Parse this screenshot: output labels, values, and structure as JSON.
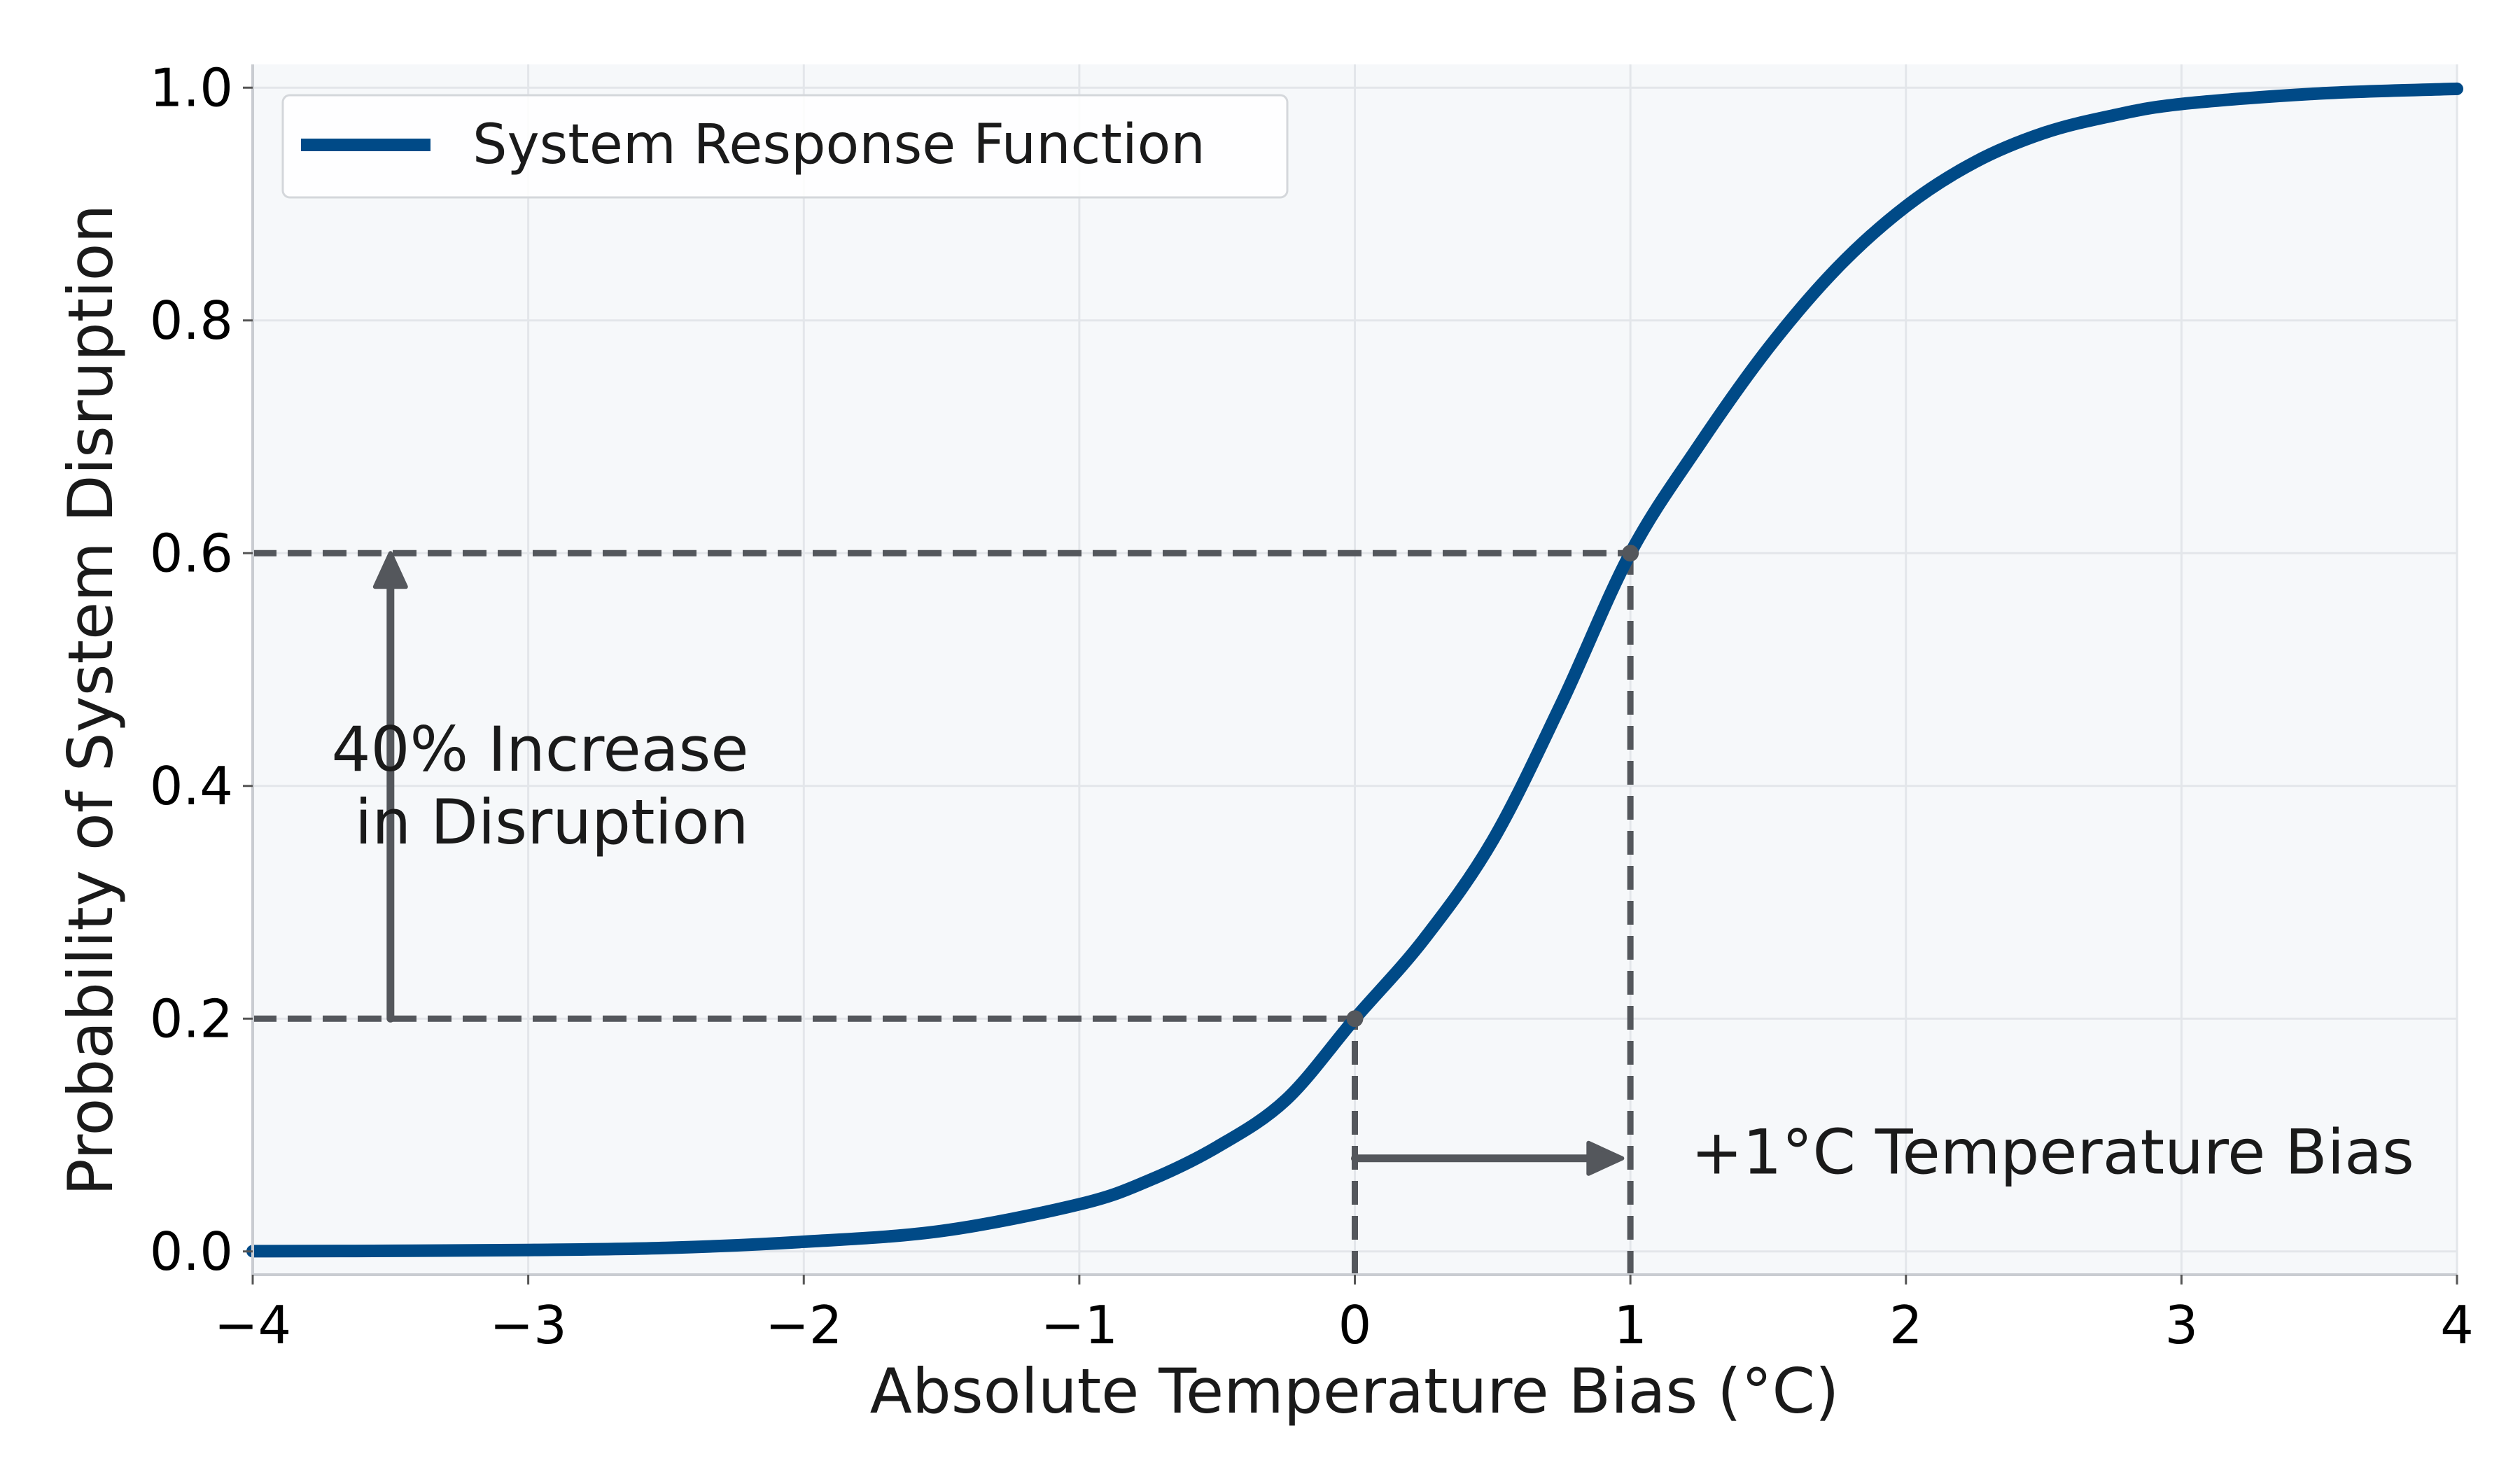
{
  "chart_data": {
    "type": "line",
    "title": "",
    "xlabel": "Absolute Temperature Bias (°C)",
    "ylabel": "Probability of System Disruption",
    "xlim": [
      -4,
      4
    ],
    "ylim": [
      -0.02,
      1.02
    ],
    "xticks": [
      -4,
      -3,
      -2,
      -1,
      0,
      1,
      2,
      3,
      4
    ],
    "xtick_labels": [
      "−4",
      "−3",
      "−2",
      "−1",
      "0",
      "1",
      "2",
      "3",
      "4"
    ],
    "yticks": [
      0.0,
      0.2,
      0.4,
      0.6,
      0.8,
      1.0
    ],
    "ytick_labels": [
      "0.0",
      "0.2",
      "0.4",
      "0.6",
      "0.8",
      "1.0"
    ],
    "grid": true,
    "legend_position": "top-left",
    "series": [
      {
        "name": "System Response Function",
        "color": "#004a87",
        "x": [
          -4.0,
          -3.5,
          -3.0,
          -2.5,
          -2.0,
          -1.5,
          -1.0,
          -0.75,
          -0.5,
          -0.25,
          0.0,
          0.25,
          0.5,
          0.75,
          1.0,
          1.25,
          1.5,
          1.75,
          2.0,
          2.25,
          2.5,
          2.75,
          3.0,
          3.5,
          4.0
        ],
        "y": [
          0.0002,
          0.0005,
          0.0012,
          0.003,
          0.0083,
          0.0176,
          0.0405,
          0.0607,
          0.0898,
          0.1303,
          0.2,
          0.268,
          0.353,
          0.471,
          0.6,
          0.693,
          0.776,
          0.845,
          0.898,
          0.936,
          0.961,
          0.976,
          0.986,
          0.995,
          0.999
        ]
      }
    ],
    "reference_lines": [
      {
        "name": "baseline-horizontal",
        "x": [
          -4,
          0
        ],
        "y": [
          0.2,
          0.2
        ]
      },
      {
        "name": "baseline-vertical",
        "x": [
          0,
          0
        ],
        "y": [
          -0.02,
          0.2
        ]
      },
      {
        "name": "shifted-horizontal",
        "x": [
          -4,
          1
        ],
        "y": [
          0.6,
          0.6
        ]
      },
      {
        "name": "shifted-vertical",
        "x": [
          1,
          1
        ],
        "y": [
          -0.02,
          0.6
        ]
      }
    ],
    "points": [
      {
        "name": "baseline-point",
        "x": 0,
        "y": 0.2
      },
      {
        "name": "shifted-point",
        "x": 1,
        "y": 0.6
      }
    ],
    "arrows": [
      {
        "name": "disruption-increase-arrow",
        "from": [
          -3.5,
          0.2
        ],
        "to": [
          -3.5,
          0.6
        ]
      },
      {
        "name": "temperature-bias-arrow",
        "from": [
          0,
          0.08
        ],
        "to": [
          0.97,
          0.08
        ]
      }
    ],
    "annotations": [
      {
        "name": "disruption-increase-label",
        "lines": [
          "40% Increase",
          "in Disruption"
        ],
        "x": -2.2,
        "y": 0.4,
        "anchor": "end"
      },
      {
        "name": "temperature-bias-label",
        "lines": [
          "+1°C Temperature Bias"
        ],
        "x": 1.22,
        "y": 0.085,
        "anchor": "start"
      }
    ]
  },
  "colors": {
    "plot_background": "#f6f8fa",
    "grid": "#e3e6ea",
    "reference": "#54575c",
    "axis": "#c9ccd1"
  }
}
